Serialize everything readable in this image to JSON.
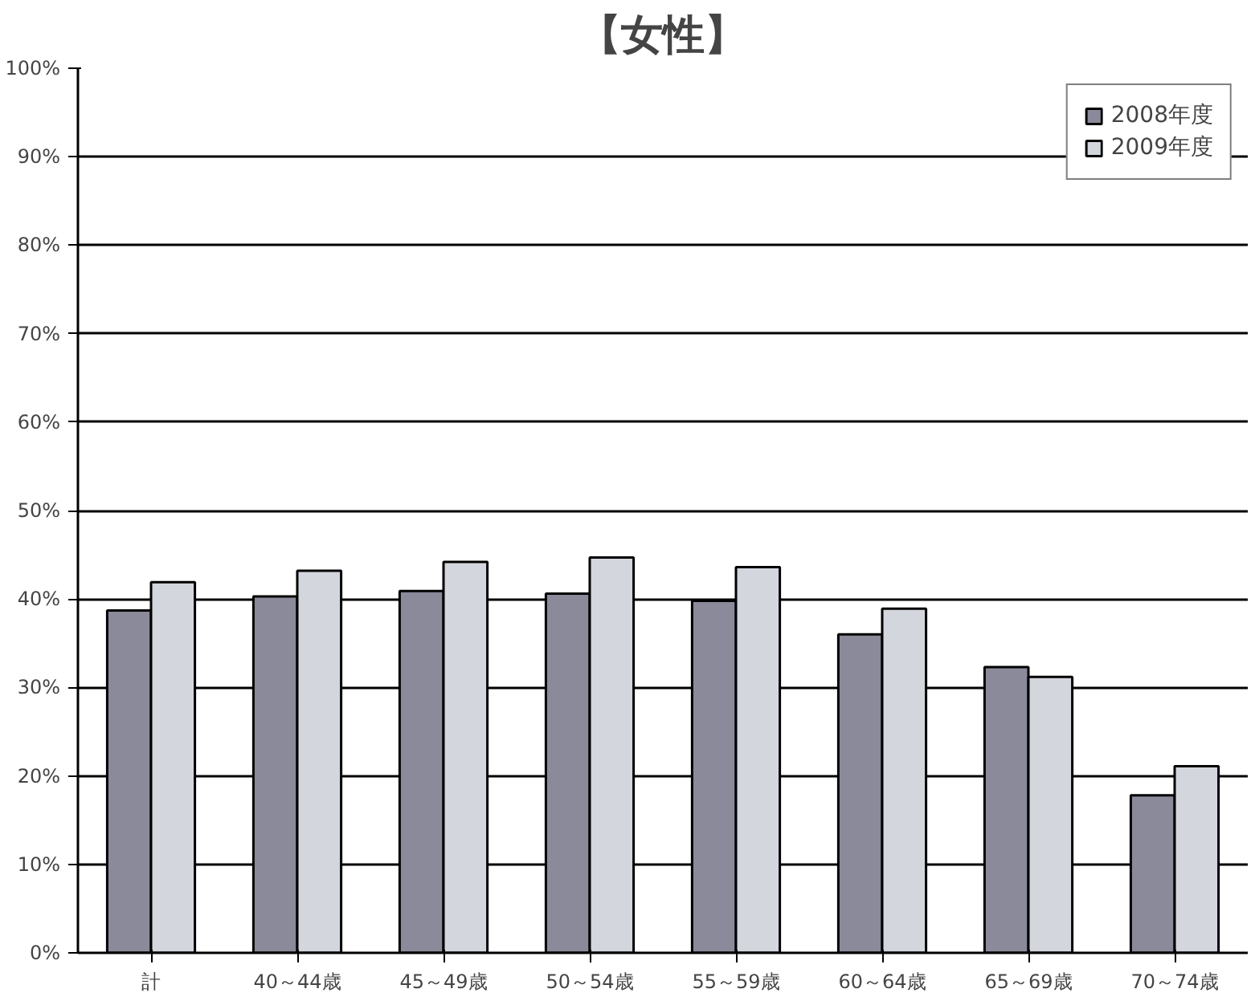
{
  "chart_data": {
    "type": "bar",
    "title": "【女性】",
    "categories": [
      "計",
      "40～44歳",
      "45～49歳",
      "50～54歳",
      "55～59歳",
      "60～64歳",
      "65～69歳",
      "70～74歳"
    ],
    "series": [
      {
        "name": "2008年度",
        "color": "#8a8a9a",
        "values": [
          38.7,
          40.3,
          40.9,
          40.6,
          39.8,
          36.0,
          32.3,
          17.8
        ]
      },
      {
        "name": "2009年度",
        "color": "#d4d6de",
        "values": [
          41.9,
          43.2,
          44.2,
          44.7,
          43.6,
          38.9,
          31.2,
          21.1
        ]
      }
    ],
    "ylim": [
      0,
      100
    ],
    "yticks": [
      {
        "value": 0,
        "label": "0%"
      },
      {
        "value": 10,
        "label": "10%"
      },
      {
        "value": 20,
        "label": "20%"
      },
      {
        "value": 30,
        "label": "30%"
      },
      {
        "value": 40,
        "label": "40%"
      },
      {
        "value": 50,
        "label": "50%"
      },
      {
        "value": 60,
        "label": "60%"
      },
      {
        "value": 70,
        "label": "70%"
      },
      {
        "value": 80,
        "label": "80%"
      },
      {
        "value": 90,
        "label": "90%"
      },
      {
        "value": 100,
        "label": "100%"
      }
    ],
    "grid": "y",
    "legend": "top right"
  }
}
